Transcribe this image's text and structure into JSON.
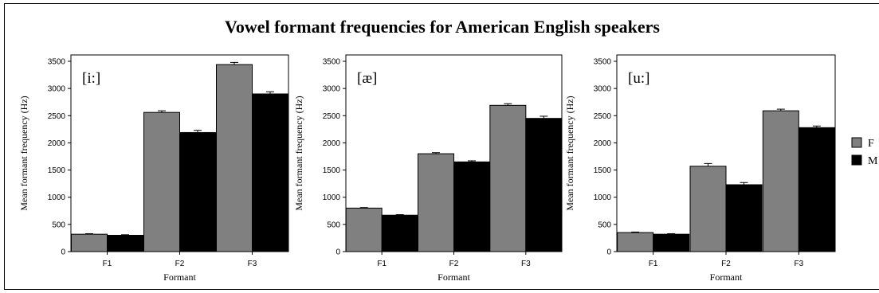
{
  "title": "Vowel formant frequencies for American English speakers",
  "colors": {
    "female": "#808080",
    "male": "#000000",
    "frame": "#000000"
  },
  "legend": [
    {
      "label": "F",
      "color": "#808080"
    },
    {
      "label": "M",
      "color": "#000000"
    }
  ],
  "chart_data": [
    {
      "type": "bar",
      "panel_label": "[i:]",
      "categories": [
        "F1",
        "F2",
        "F3"
      ],
      "series": [
        {
          "name": "F",
          "values": [
            320,
            2560,
            3440
          ],
          "errors": [
            10,
            30,
            40
          ]
        },
        {
          "name": "M",
          "values": [
            300,
            2190,
            2900
          ],
          "errors": [
            10,
            40,
            40
          ]
        }
      ],
      "xlabel": "Formant",
      "ylabel": "Mean formant frequency (Hz)",
      "ylim": [
        0,
        3500
      ],
      "yticks": [
        0,
        500,
        1000,
        1500,
        2000,
        2500,
        3000,
        3500
      ]
    },
    {
      "type": "bar",
      "panel_label": "[æ]",
      "categories": [
        "F1",
        "F2",
        "F3"
      ],
      "series": [
        {
          "name": "F",
          "values": [
            800,
            1800,
            2690
          ],
          "errors": [
            10,
            20,
            30
          ]
        },
        {
          "name": "M",
          "values": [
            670,
            1650,
            2450
          ],
          "errors": [
            10,
            20,
            40
          ]
        }
      ],
      "xlabel": "Formant",
      "ylabel": "Mean formant frequency (Hz)",
      "ylim": [
        0,
        3500
      ],
      "yticks": [
        0,
        500,
        1000,
        1500,
        2000,
        2500,
        3000,
        3500
      ]
    },
    {
      "type": "bar",
      "panel_label": "[u:]",
      "categories": [
        "F1",
        "F2",
        "F3"
      ],
      "series": [
        {
          "name": "F",
          "values": [
            350,
            1570,
            2590
          ],
          "errors": [
            10,
            50,
            30
          ]
        },
        {
          "name": "M",
          "values": [
            320,
            1230,
            2280
          ],
          "errors": [
            10,
            40,
            30
          ]
        }
      ],
      "xlabel": "Formant",
      "ylabel": "Mean formant frequency (Hz)",
      "ylim": [
        0,
        3500
      ],
      "yticks": [
        0,
        500,
        1000,
        1500,
        2000,
        2500,
        3000,
        3500
      ]
    }
  ]
}
